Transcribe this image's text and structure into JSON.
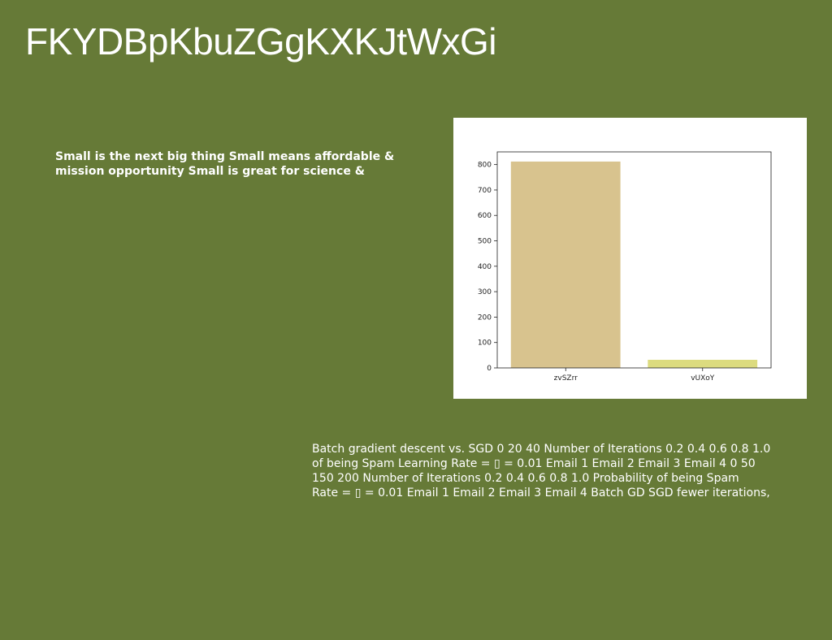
{
  "slide": {
    "title": "FKYDBpKbuZGgKXKJtWxGi",
    "left_text_lines": [
      "Small is the next big thing Small means affordable &",
      "mission opportunity Small is great for science &"
    ],
    "bottom_text_lines": [
      "Batch gradient descent vs. SGD 0 20 40 Number of Iterations 0.2 0.4 0.6 0.8 1.0",
      "of being Spam Learning Rate = ▯ = 0.01 Email 1 Email 2 Email 3 Email 4 0 50",
      "150 200 Number of Iterations 0.2 0.4 0.6 0.8 1.0 Probability of being Spam",
      "Rate = ▯ = 0.01 Email 1 Email 2 Email 3 Email 4 Batch GD SGD fewer iterations,"
    ],
    "colors": {
      "background": "#667a37",
      "text": "#ffffff"
    }
  },
  "chart_data": {
    "type": "bar",
    "categories": [
      "zvSZrr",
      "vUXoY"
    ],
    "values": [
      812,
      32
    ],
    "title": "",
    "xlabel": "",
    "ylabel": "",
    "ylim": [
      0,
      850
    ],
    "yticks": [
      0,
      100,
      200,
      300,
      400,
      500,
      600,
      700,
      800
    ],
    "colors": [
      "#d8c38e",
      "#dcdb7f"
    ],
    "grid": false,
    "legend": "none"
  }
}
